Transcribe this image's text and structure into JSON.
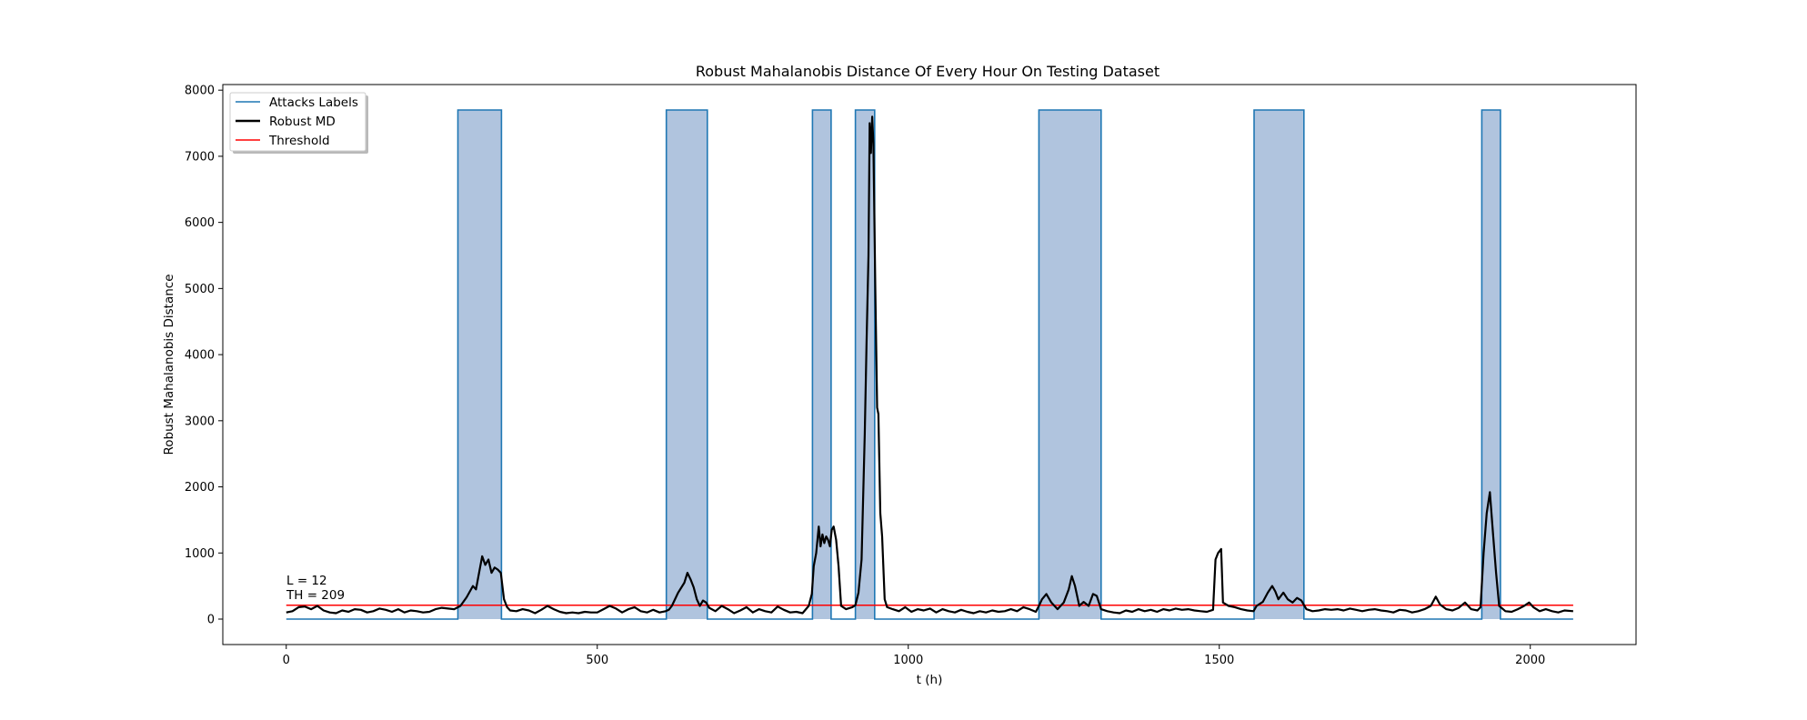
{
  "chart_data": {
    "type": "line",
    "title": "Robust Mahalanobis Distance Of Every Hour On Testing Dataset",
    "xlabel": "t (h)",
    "ylabel": "Robust Mahalanobis Distance",
    "xlim": [
      -102,
      2170
    ],
    "ylim": [
      -385,
      8085
    ],
    "xticks": [
      0,
      500,
      1000,
      1500,
      2000
    ],
    "yticks": [
      0,
      1000,
      2000,
      3000,
      4000,
      5000,
      6000,
      7000,
      8000
    ],
    "grid": false,
    "legend_position": "upper left",
    "colors": {
      "attacks": "#1f77b4",
      "attacks_fill": "#b0c4de",
      "md": "#000000",
      "threshold": "#ff0000"
    },
    "legend": [
      {
        "label": "Attacks Labels",
        "color": "#1f77b4"
      },
      {
        "label": "Robust MD",
        "color": "#000000"
      },
      {
        "label": "Threshold",
        "color": "#ff0000"
      }
    ],
    "annotations": [
      "L = 12",
      "TH = 209"
    ],
    "attack_height": 7700,
    "attack_intervals": [
      [
        276,
        346
      ],
      [
        611,
        677
      ],
      [
        846,
        876
      ],
      [
        915,
        946
      ],
      [
        1210,
        1310
      ],
      [
        1556,
        1636
      ],
      [
        1922,
        1952
      ]
    ],
    "threshold": 209,
    "x_range": [
      0,
      2069
    ],
    "series": [
      {
        "name": "Robust MD",
        "points": [
          [
            0,
            100
          ],
          [
            10,
            120
          ],
          [
            20,
            180
          ],
          [
            30,
            190
          ],
          [
            40,
            150
          ],
          [
            50,
            200
          ],
          [
            60,
            130
          ],
          [
            70,
            100
          ],
          [
            80,
            90
          ],
          [
            90,
            130
          ],
          [
            100,
            110
          ],
          [
            110,
            150
          ],
          [
            120,
            140
          ],
          [
            130,
            100
          ],
          [
            140,
            120
          ],
          [
            150,
            160
          ],
          [
            160,
            140
          ],
          [
            170,
            110
          ],
          [
            180,
            150
          ],
          [
            190,
            100
          ],
          [
            200,
            130
          ],
          [
            210,
            120
          ],
          [
            220,
            100
          ],
          [
            230,
            110
          ],
          [
            240,
            150
          ],
          [
            250,
            170
          ],
          [
            260,
            160
          ],
          [
            270,
            150
          ],
          [
            280,
            200
          ],
          [
            290,
            330
          ],
          [
            300,
            500
          ],
          [
            305,
            450
          ],
          [
            310,
            700
          ],
          [
            315,
            950
          ],
          [
            320,
            820
          ],
          [
            325,
            900
          ],
          [
            330,
            700
          ],
          [
            335,
            780
          ],
          [
            340,
            750
          ],
          [
            345,
            700
          ],
          [
            350,
            300
          ],
          [
            355,
            180
          ],
          [
            360,
            130
          ],
          [
            370,
            120
          ],
          [
            380,
            150
          ],
          [
            390,
            130
          ],
          [
            400,
            90
          ],
          [
            410,
            140
          ],
          [
            420,
            200
          ],
          [
            430,
            150
          ],
          [
            440,
            110
          ],
          [
            450,
            90
          ],
          [
            460,
            100
          ],
          [
            470,
            90
          ],
          [
            480,
            110
          ],
          [
            490,
            100
          ],
          [
            500,
            100
          ],
          [
            510,
            150
          ],
          [
            520,
            200
          ],
          [
            530,
            160
          ],
          [
            540,
            100
          ],
          [
            550,
            150
          ],
          [
            560,
            180
          ],
          [
            570,
            120
          ],
          [
            580,
            100
          ],
          [
            590,
            140
          ],
          [
            600,
            100
          ],
          [
            610,
            120
          ],
          [
            615,
            140
          ],
          [
            620,
            200
          ],
          [
            630,
            400
          ],
          [
            640,
            550
          ],
          [
            645,
            700
          ],
          [
            650,
            600
          ],
          [
            655,
            480
          ],
          [
            660,
            300
          ],
          [
            665,
            200
          ],
          [
            670,
            280
          ],
          [
            675,
            250
          ],
          [
            680,
            170
          ],
          [
            690,
            120
          ],
          [
            700,
            200
          ],
          [
            710,
            150
          ],
          [
            720,
            90
          ],
          [
            730,
            130
          ],
          [
            740,
            180
          ],
          [
            750,
            100
          ],
          [
            760,
            150
          ],
          [
            770,
            120
          ],
          [
            780,
            100
          ],
          [
            790,
            190
          ],
          [
            800,
            140
          ],
          [
            810,
            100
          ],
          [
            820,
            110
          ],
          [
            830,
            90
          ],
          [
            840,
            200
          ],
          [
            845,
            380
          ],
          [
            848,
            800
          ],
          [
            852,
            1000
          ],
          [
            856,
            1400
          ],
          [
            859,
            1100
          ],
          [
            862,
            1280
          ],
          [
            865,
            1150
          ],
          [
            868,
            1250
          ],
          [
            871,
            1200
          ],
          [
            874,
            1100
          ],
          [
            877,
            1350
          ],
          [
            880,
            1400
          ],
          [
            884,
            1200
          ],
          [
            888,
            800
          ],
          [
            892,
            200
          ],
          [
            900,
            150
          ],
          [
            910,
            180
          ],
          [
            915,
            210
          ],
          [
            920,
            400
          ],
          [
            925,
            900
          ],
          [
            930,
            2800
          ],
          [
            933,
            4200
          ],
          [
            936,
            5500
          ],
          [
            938,
            7500
          ],
          [
            940,
            7050
          ],
          [
            942,
            7600
          ],
          [
            944,
            7200
          ],
          [
            947,
            5000
          ],
          [
            950,
            3200
          ],
          [
            952,
            3100
          ],
          [
            955,
            1600
          ],
          [
            958,
            1250
          ],
          [
            962,
            300
          ],
          [
            966,
            180
          ],
          [
            975,
            150
          ],
          [
            985,
            120
          ],
          [
            995,
            180
          ],
          [
            1005,
            110
          ],
          [
            1015,
            150
          ],
          [
            1025,
            130
          ],
          [
            1035,
            160
          ],
          [
            1045,
            100
          ],
          [
            1055,
            150
          ],
          [
            1065,
            120
          ],
          [
            1075,
            100
          ],
          [
            1085,
            140
          ],
          [
            1095,
            110
          ],
          [
            1105,
            90
          ],
          [
            1115,
            120
          ],
          [
            1125,
            100
          ],
          [
            1135,
            130
          ],
          [
            1145,
            110
          ],
          [
            1155,
            120
          ],
          [
            1165,
            150
          ],
          [
            1175,
            120
          ],
          [
            1185,
            180
          ],
          [
            1195,
            150
          ],
          [
            1205,
            110
          ],
          [
            1210,
            200
          ],
          [
            1215,
            300
          ],
          [
            1222,
            380
          ],
          [
            1230,
            250
          ],
          [
            1240,
            150
          ],
          [
            1250,
            250
          ],
          [
            1258,
            450
          ],
          [
            1263,
            650
          ],
          [
            1268,
            500
          ],
          [
            1275,
            200
          ],
          [
            1282,
            260
          ],
          [
            1290,
            200
          ],
          [
            1297,
            380
          ],
          [
            1303,
            350
          ],
          [
            1310,
            150
          ],
          [
            1320,
            120
          ],
          [
            1330,
            100
          ],
          [
            1340,
            90
          ],
          [
            1350,
            130
          ],
          [
            1360,
            110
          ],
          [
            1370,
            150
          ],
          [
            1380,
            120
          ],
          [
            1390,
            140
          ],
          [
            1400,
            110
          ],
          [
            1410,
            150
          ],
          [
            1420,
            130
          ],
          [
            1430,
            160
          ],
          [
            1440,
            140
          ],
          [
            1450,
            150
          ],
          [
            1460,
            130
          ],
          [
            1470,
            120
          ],
          [
            1480,
            110
          ],
          [
            1490,
            140
          ],
          [
            1494,
            900
          ],
          [
            1498,
            1000
          ],
          [
            1503,
            1060
          ],
          [
            1506,
            250
          ],
          [
            1515,
            200
          ],
          [
            1525,
            180
          ],
          [
            1535,
            150
          ],
          [
            1545,
            130
          ],
          [
            1555,
            120
          ],
          [
            1560,
            200
          ],
          [
            1570,
            260
          ],
          [
            1578,
            400
          ],
          [
            1585,
            500
          ],
          [
            1590,
            420
          ],
          [
            1595,
            300
          ],
          [
            1603,
            400
          ],
          [
            1610,
            300
          ],
          [
            1618,
            250
          ],
          [
            1625,
            320
          ],
          [
            1632,
            280
          ],
          [
            1640,
            150
          ],
          [
            1650,
            120
          ],
          [
            1660,
            130
          ],
          [
            1670,
            150
          ],
          [
            1680,
            140
          ],
          [
            1690,
            150
          ],
          [
            1700,
            130
          ],
          [
            1710,
            160
          ],
          [
            1720,
            140
          ],
          [
            1730,
            120
          ],
          [
            1740,
            140
          ],
          [
            1750,
            150
          ],
          [
            1760,
            130
          ],
          [
            1770,
            120
          ],
          [
            1780,
            100
          ],
          [
            1790,
            140
          ],
          [
            1800,
            130
          ],
          [
            1810,
            100
          ],
          [
            1820,
            120
          ],
          [
            1830,
            150
          ],
          [
            1840,
            200
          ],
          [
            1848,
            340
          ],
          [
            1855,
            220
          ],
          [
            1865,
            150
          ],
          [
            1875,
            130
          ],
          [
            1885,
            170
          ],
          [
            1895,
            250
          ],
          [
            1905,
            150
          ],
          [
            1915,
            130
          ],
          [
            1920,
            180
          ],
          [
            1925,
            1000
          ],
          [
            1930,
            1600
          ],
          [
            1935,
            1920
          ],
          [
            1940,
            1300
          ],
          [
            1945,
            700
          ],
          [
            1950,
            200
          ],
          [
            1960,
            120
          ],
          [
            1970,
            110
          ],
          [
            1980,
            150
          ],
          [
            1990,
            200
          ],
          [
            1998,
            250
          ],
          [
            2005,
            180
          ],
          [
            2015,
            120
          ],
          [
            2025,
            150
          ],
          [
            2035,
            120
          ],
          [
            2045,
            100
          ],
          [
            2055,
            130
          ],
          [
            2069,
            120
          ]
        ]
      }
    ]
  }
}
